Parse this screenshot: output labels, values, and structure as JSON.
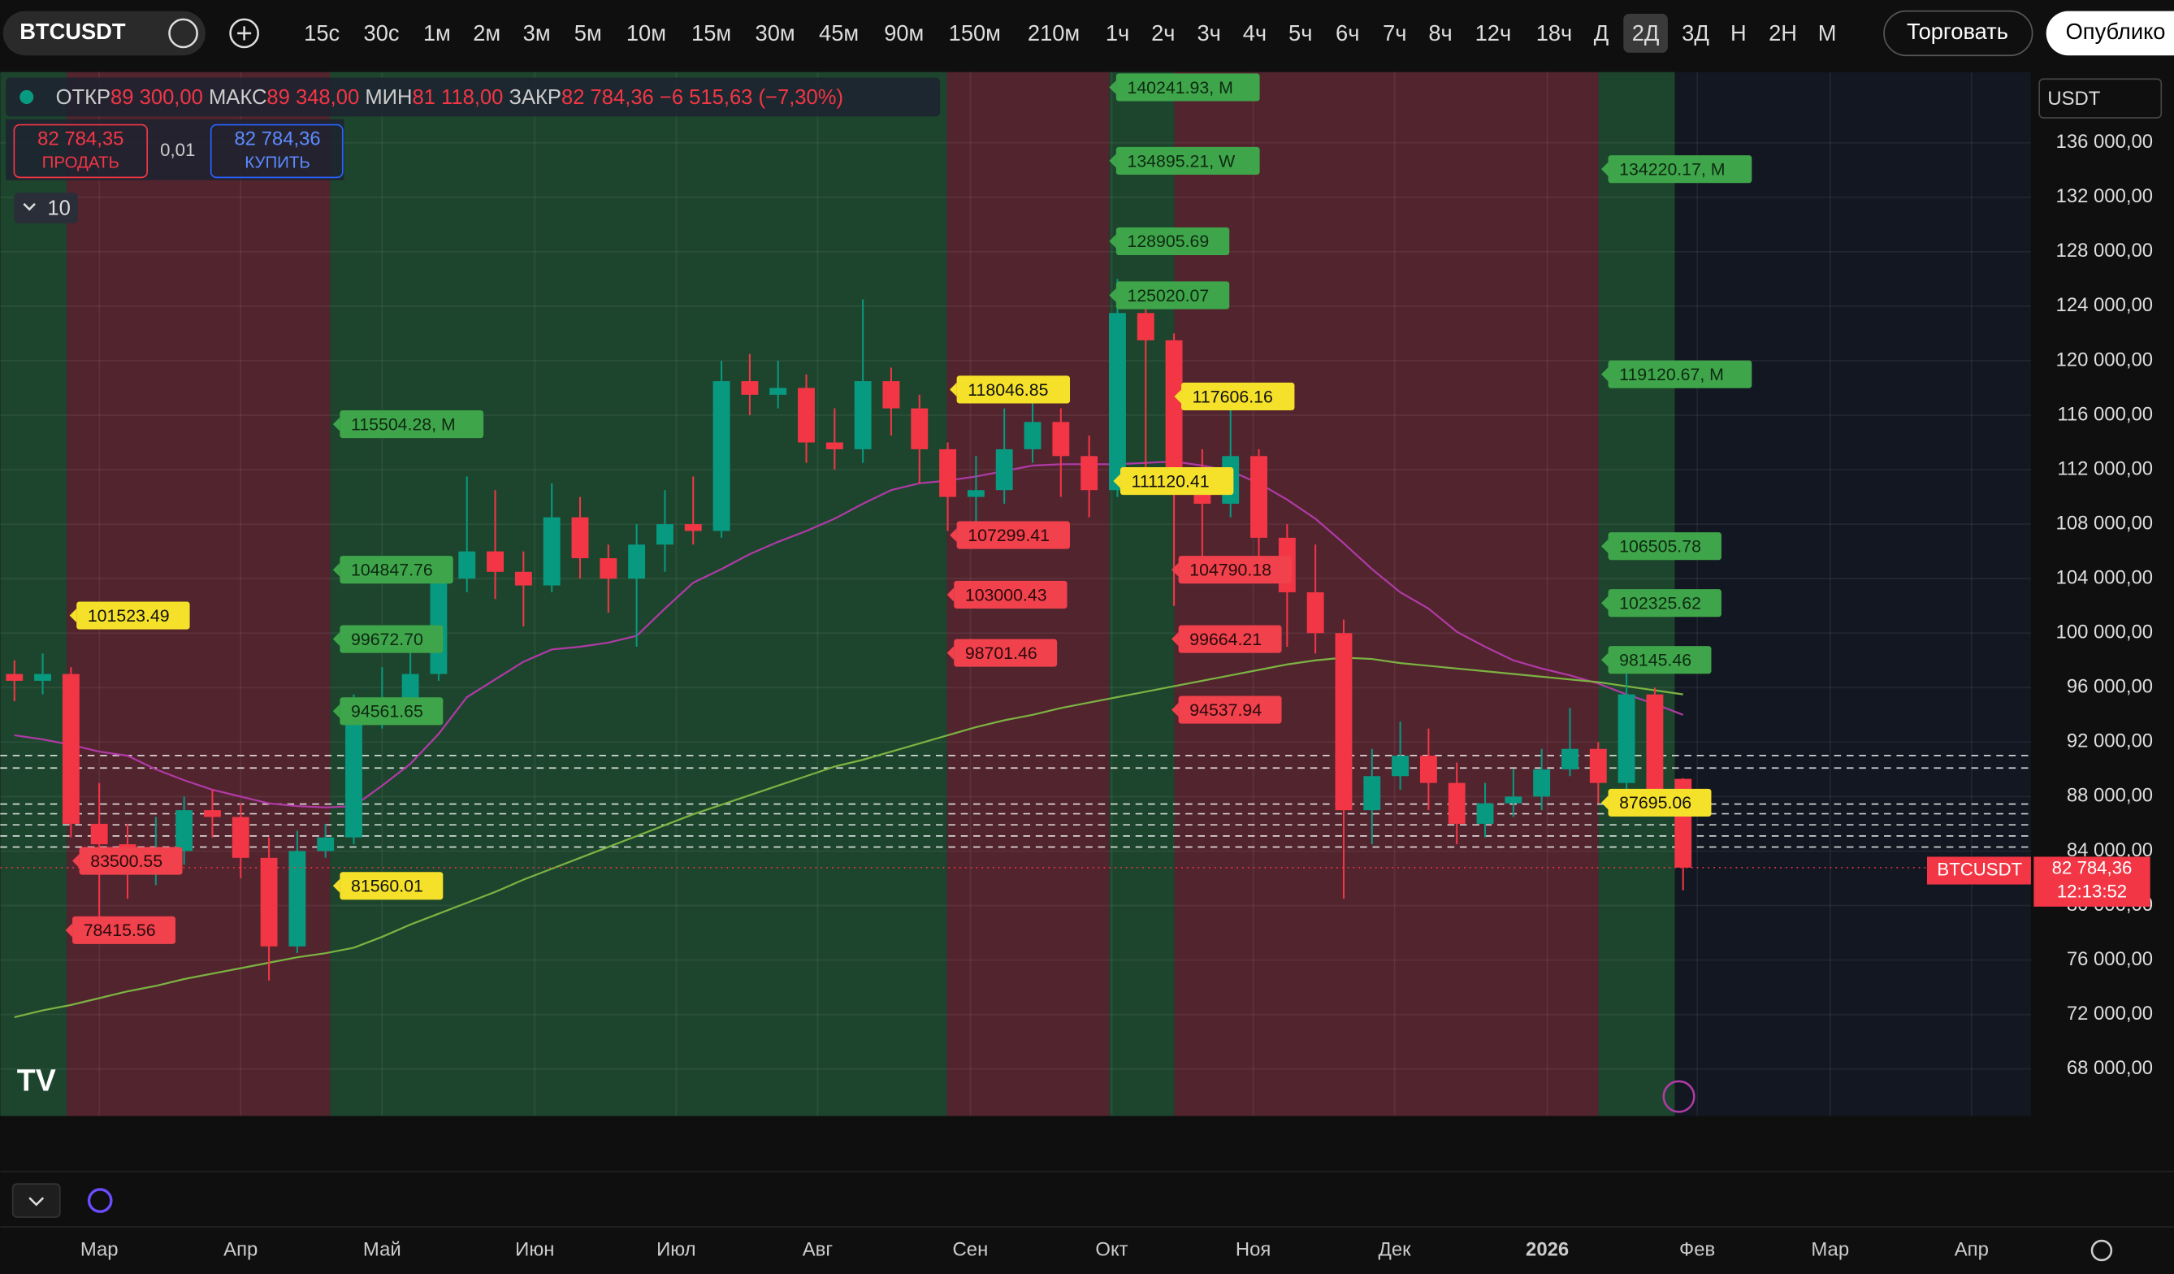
{
  "ui": {
    "symbol": "BTCUSDT",
    "timeframes": [
      "15с",
      "30с",
      "1м",
      "2м",
      "3м",
      "5м",
      "10м",
      "15м",
      "30м",
      "45м",
      "90м",
      "150м",
      "210м",
      "1ч",
      "2ч",
      "3ч",
      "4ч",
      "5ч",
      "6ч",
      "7ч",
      "8ч",
      "12ч",
      "18ч",
      "Д",
      "2Д",
      "3Д",
      "Н",
      "2Н",
      "М"
    ],
    "trade": "Торговать",
    "publish": "Опублико",
    "ohlc": {
      "open_label": "ОТКР",
      "open": "89 300,00",
      "high_label": "МАКС",
      "high": "89 348,00",
      "low_label": "МИН",
      "low": "81 118,00",
      "close_label": "ЗАКР",
      "close": "82 784,36",
      "change": "−6 515,63 (−7,30%)"
    },
    "sell": {
      "price": "82 784,35",
      "label": "ПРОДАТЬ"
    },
    "spread": "0,01",
    "buy": {
      "price": "82 784,36",
      "label": "КУПИТЬ"
    },
    "lots": "10",
    "currency": "USDT",
    "price_tag": {
      "symbol": "BTCUSDT",
      "price": "82 784,36",
      "countdown": "12:13:52"
    }
  },
  "chart_data": {
    "type": "candlestick",
    "up_color": "#089981",
    "down_color": "#f23645",
    "open": [
      97000,
      96500,
      97000,
      86000,
      84500,
      83000,
      84000,
      87000,
      86500,
      83500,
      77000,
      84000,
      85000,
      94500,
      95000,
      97000,
      104000,
      106000,
      104500,
      103500,
      108500,
      105500,
      104000,
      106500,
      108000,
      107500,
      118500,
      117500,
      118000,
      114000,
      113500,
      118500,
      116500,
      113500,
      110000,
      110500,
      113500,
      115500,
      113000,
      110500,
      123500,
      121500,
      110500,
      109500,
      113000,
      107000,
      103000,
      100000,
      87000,
      89500,
      91000,
      89000,
      86000,
      87500,
      88000,
      90000,
      91500,
      89000,
      95500,
      89300
    ],
    "high": [
      98000,
      98500,
      97500,
      89000,
      86000,
      86500,
      88000,
      88500,
      87500,
      85000,
      85500,
      86000,
      95500,
      97500,
      99000,
      105500,
      111500,
      110500,
      106000,
      111000,
      110000,
      106500,
      108000,
      110500,
      111500,
      120000,
      120500,
      120000,
      119000,
      116500,
      124500,
      119500,
      117500,
      114000,
      113000,
      116500,
      117800,
      116500,
      114500,
      126000,
      125000,
      122000,
      113500,
      117000,
      113500,
      108000,
      106500,
      101000,
      91500,
      93500,
      93000,
      90500,
      89000,
      90000,
      91500,
      94500,
      92000,
      97500,
      96000,
      89348
    ],
    "low": [
      95000,
      95500,
      85000,
      78500,
      80500,
      81500,
      83000,
      85000,
      82000,
      74500,
      76500,
      83500,
      84500,
      93000,
      94000,
      96500,
      103000,
      102500,
      100500,
      103000,
      104000,
      101500,
      99000,
      104500,
      106500,
      107000,
      116000,
      116500,
      112500,
      112000,
      112500,
      114500,
      111000,
      107500,
      107000,
      109500,
      112500,
      110000,
      108500,
      110000,
      112000,
      102000,
      104000,
      108500,
      105500,
      99000,
      98500,
      80500,
      84500,
      88500,
      87000,
      84500,
      85000,
      86500,
      87000,
      89500,
      87500,
      88500,
      87500,
      81118
    ],
    "close": [
      96500,
      97000,
      86000,
      84500,
      83000,
      84000,
      87000,
      86500,
      83500,
      77000,
      84000,
      85000,
      94500,
      95000,
      97000,
      104000,
      106000,
      104500,
      103500,
      108500,
      105500,
      104000,
      106500,
      108000,
      107500,
      118500,
      117500,
      118000,
      114000,
      113500,
      118500,
      116500,
      113500,
      110000,
      110500,
      113500,
      115500,
      113000,
      110500,
      123500,
      121500,
      110500,
      109500,
      113000,
      107000,
      103000,
      100000,
      87000,
      89500,
      91000,
      89000,
      86000,
      87500,
      88000,
      90000,
      91500,
      89000,
      95500,
      88500,
      82784.36
    ],
    "series": [
      {
        "color": "#b03aa6",
        "values": [
          92500,
          92200,
          91800,
          91300,
          91000,
          90000,
          89200,
          88500,
          88000,
          87500,
          87300,
          87200,
          87300,
          88800,
          90400,
          92600,
          95300,
          96600,
          97900,
          98800,
          99000,
          99300,
          99800,
          101800,
          103700,
          104700,
          105800,
          106700,
          107500,
          108400,
          109500,
          110500,
          111000,
          111200,
          111500,
          111900,
          112300,
          112400,
          112400,
          112400,
          112500,
          112600,
          112300,
          111900,
          111000,
          109800,
          108400,
          106600,
          104700,
          103000,
          101800,
          100100,
          99000,
          98000,
          97400,
          96900,
          96300,
          95500,
          94800,
          94000
        ]
      },
      {
        "color": "#7cb342",
        "values": [
          71800,
          72300,
          72700,
          73200,
          73700,
          74100,
          74600,
          75000,
          75400,
          75800,
          76200,
          76500,
          76900,
          77700,
          78600,
          79400,
          80200,
          81000,
          81900,
          82700,
          83500,
          84300,
          85100,
          85900,
          86700,
          87400,
          88100,
          88800,
          89500,
          90200,
          90700,
          91300,
          91900,
          92500,
          93100,
          93600,
          94000,
          94500,
          94900,
          95300,
          95700,
          96100,
          96500,
          96900,
          97300,
          97700,
          98000,
          98200,
          98100,
          97800,
          97600,
          97400,
          97200,
          97000,
          96800,
          96600,
          96400,
          96100,
          95800,
          95500
        ]
      }
    ],
    "xlim": [
      -0.5,
      71.3
    ],
    "xticks": [
      {
        "value": 3,
        "label": "Мар"
      },
      {
        "value": 8,
        "label": "Апр"
      },
      {
        "value": 13,
        "label": "Май"
      },
      {
        "value": 18.4,
        "label": "Июн"
      },
      {
        "value": 23.4,
        "label": "Июл"
      },
      {
        "value": 28.4,
        "label": "Авг"
      },
      {
        "value": 33.8,
        "label": "Сен"
      },
      {
        "value": 38.8,
        "label": "Окт"
      },
      {
        "value": 43.8,
        "label": "Ноя"
      },
      {
        "value": 48.8,
        "label": "Дек"
      },
      {
        "value": 54.2,
        "label": "2026"
      },
      {
        "value": 59.5,
        "label": "Фев"
      },
      {
        "value": 64.2,
        "label": "Мар"
      },
      {
        "value": 69.2,
        "label": "Апр"
      }
    ],
    "ylim": [
      64550,
      141190
    ],
    "yticks": [
      {
        "value": 136000,
        "label": "136 000,00"
      },
      {
        "value": 132000,
        "label": "132 000,00"
      },
      {
        "value": 128000,
        "label": "128 000,00"
      },
      {
        "value": 124000,
        "label": "124 000,00"
      },
      {
        "value": 120000,
        "label": "120 000,00"
      },
      {
        "value": 116000,
        "label": "116 000,00"
      },
      {
        "value": 112000,
        "label": "112 000,00"
      },
      {
        "value": 108000,
        "label": "108 000,00"
      },
      {
        "value": 104000,
        "label": "104 000,00"
      },
      {
        "value": 100000,
        "label": "100 000,00"
      },
      {
        "value": 96000,
        "label": "96 000,00"
      },
      {
        "value": 92000,
        "label": "92 000,00"
      },
      {
        "value": 88000,
        "label": "88 000,00"
      },
      {
        "value": 84000,
        "label": "84 000,00"
      },
      {
        "value": 80000,
        "label": "80 000,00"
      },
      {
        "value": 76000,
        "label": "76 000,00"
      },
      {
        "value": 72000,
        "label": "72 000,00"
      },
      {
        "value": 68000,
        "label": "68 000,00"
      }
    ],
    "grid": true,
    "annotations": [
      {
        "text": "101523.49",
        "style": "yellow"
      },
      {
        "text": "78415.56",
        "style": "red"
      },
      {
        "text": "83500.55",
        "style": "red"
      },
      {
        "text": "115504.28, M",
        "style": "green"
      },
      {
        "text": "104847.76",
        "style": "green"
      },
      {
        "text": "99672.70",
        "style": "green"
      },
      {
        "text": "94561.65",
        "style": "green"
      },
      {
        "text": "81560.01",
        "style": "yellow"
      },
      {
        "text": "118046.85",
        "style": "yellow"
      },
      {
        "text": "107299.41",
        "style": "red"
      },
      {
        "text": "103000.43",
        "style": "red"
      },
      {
        "text": "98701.46",
        "style": "red"
      },
      {
        "text": "140241.93, M",
        "style": "green"
      },
      {
        "text": "134895.21, W",
        "style": "green"
      },
      {
        "text": "128905.69",
        "style": "green"
      },
      {
        "text": "125020.07",
        "style": "green"
      },
      {
        "text": "117606.16",
        "style": "yellow"
      },
      {
        "text": "111120.41",
        "style": "yellow"
      },
      {
        "text": "104790.18",
        "style": "red"
      },
      {
        "text": "99664.21",
        "style": "red"
      },
      {
        "text": "94537.94",
        "style": "red"
      },
      {
        "text": "134220.17, M",
        "style": "green"
      },
      {
        "text": "119120.67, M",
        "style": "green"
      },
      {
        "text": "106505.78",
        "style": "green"
      },
      {
        "text": "102325.62",
        "style": "green"
      },
      {
        "text": "98145.46",
        "style": "green"
      },
      {
        "text": "87695.06",
        "style": "yellow"
      }
    ]
  }
}
